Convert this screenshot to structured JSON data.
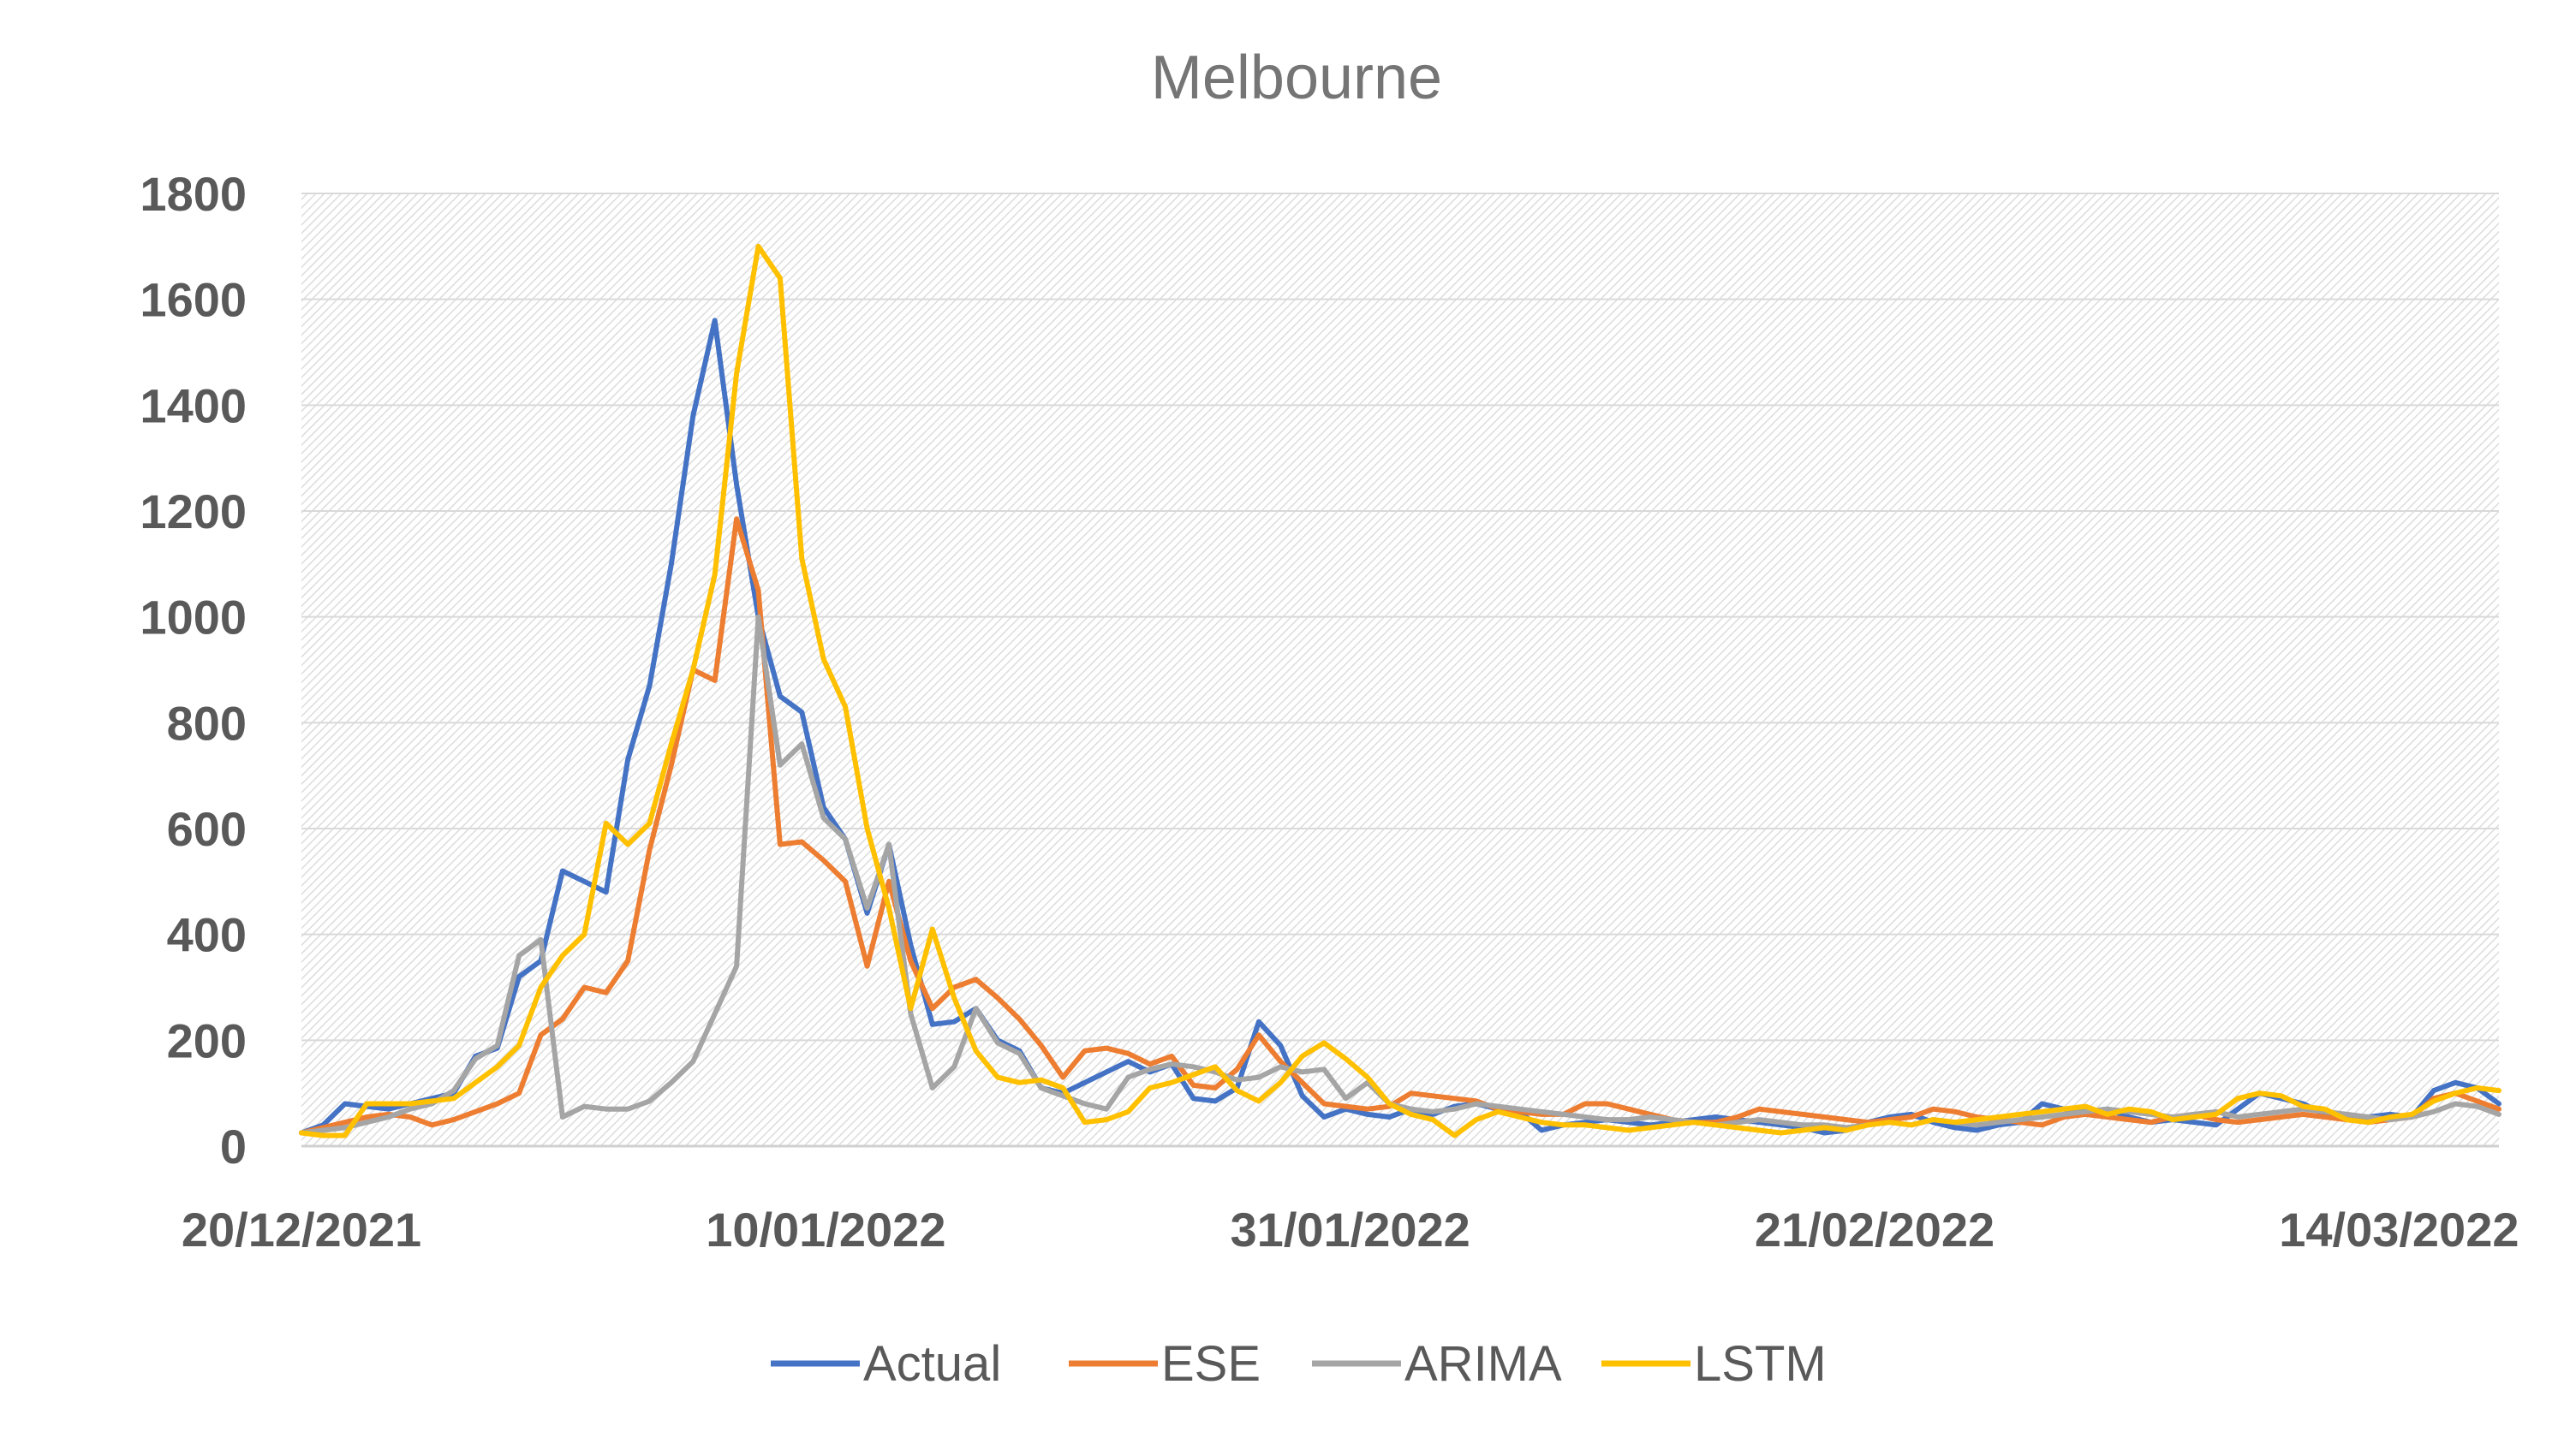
{
  "chart_data": {
    "type": "line",
    "title": "Melbourne",
    "xlabel": "",
    "ylabel": "",
    "ylim": [
      0,
      1800
    ],
    "yticks": [
      "0",
      "200",
      "400",
      "600",
      "800",
      "1000",
      "1200",
      "1400",
      "1600",
      "1800"
    ],
    "x_start": "20/12/2021",
    "x_end": "18/03/2022",
    "xticks": [
      "20/12/2021",
      "10/01/2022",
      "31/01/2022",
      "21/02/2022",
      "14/03/2022"
    ],
    "grid": true,
    "legend": "bottom",
    "series": [
      {
        "name": "Actual",
        "color": "#4472C4",
        "values": [
          25,
          40,
          80,
          75,
          70,
          80,
          90,
          100,
          170,
          185,
          320,
          350,
          520,
          500,
          480,
          730,
          870,
          1100,
          1380,
          1560,
          1250,
          1000,
          850,
          820,
          640,
          580,
          440,
          570,
          380,
          230,
          235,
          260,
          200,
          180,
          110,
          100,
          120,
          140,
          160,
          140,
          155,
          90,
          85,
          110,
          235,
          190,
          95,
          55,
          70,
          60,
          55,
          70,
          60,
          75,
          80,
          70,
          65,
          30,
          40,
          45,
          50,
          45,
          40,
          45,
          50,
          55,
          50,
          45,
          40,
          35,
          25,
          30,
          45,
          55,
          60,
          45,
          35,
          30,
          40,
          45,
          80,
          70,
          65,
          70,
          55,
          45,
          50,
          45,
          40,
          70,
          100,
          90,
          80,
          60,
          50,
          55,
          60,
          55,
          105,
          120,
          110,
          80
        ]
      },
      {
        "name": "ESE",
        "color": "#ED7D31",
        "values": [
          25,
          35,
          45,
          55,
          60,
          55,
          40,
          50,
          65,
          80,
          100,
          210,
          240,
          300,
          290,
          350,
          560,
          720,
          900,
          880,
          1185,
          1050,
          570,
          575,
          540,
          500,
          340,
          500,
          350,
          260,
          300,
          315,
          280,
          240,
          190,
          130,
          180,
          185,
          175,
          155,
          170,
          115,
          110,
          145,
          210,
          160,
          120,
          80,
          75,
          70,
          75,
          100,
          95,
          90,
          85,
          70,
          65,
          60,
          60,
          80,
          80,
          70,
          60,
          50,
          45,
          45,
          55,
          70,
          65,
          60,
          55,
          50,
          45,
          50,
          55,
          70,
          65,
          55,
          50,
          45,
          40,
          55,
          60,
          55,
          50,
          45,
          55,
          60,
          50,
          45,
          50,
          55,
          60,
          55,
          50,
          45,
          50,
          55,
          90,
          100,
          85,
          70
        ]
      },
      {
        "name": "ARIMA",
        "color": "#A5A5A5",
        "values": [
          25,
          30,
          35,
          45,
          55,
          70,
          80,
          105,
          165,
          190,
          360,
          390,
          55,
          75,
          70,
          70,
          85,
          120,
          160,
          250,
          340,
          1000,
          720,
          760,
          620,
          580,
          450,
          570,
          250,
          110,
          150,
          260,
          195,
          175,
          110,
          95,
          80,
          70,
          130,
          145,
          155,
          150,
          140,
          125,
          130,
          150,
          140,
          145,
          90,
          120,
          80,
          70,
          65,
          70,
          80,
          75,
          70,
          65,
          60,
          55,
          50,
          50,
          55,
          50,
          45,
          40,
          45,
          50,
          45,
          40,
          40,
          35,
          40,
          45,
          40,
          50,
          45,
          40,
          45,
          50,
          55,
          60,
          65,
          70,
          65,
          60,
          55,
          60,
          65,
          55,
          60,
          65,
          70,
          65,
          60,
          55,
          50,
          55,
          65,
          80,
          75,
          60
        ]
      },
      {
        "name": "LSTM",
        "color": "#FFC000",
        "values": [
          25,
          20,
          20,
          80,
          80,
          80,
          85,
          90,
          120,
          150,
          190,
          300,
          360,
          400,
          610,
          570,
          610,
          760,
          900,
          1080,
          1460,
          1700,
          1640,
          1110,
          920,
          830,
          600,
          450,
          260,
          410,
          280,
          180,
          130,
          120,
          125,
          110,
          45,
          50,
          65,
          110,
          120,
          135,
          150,
          105,
          85,
          120,
          170,
          195,
          165,
          130,
          80,
          60,
          50,
          20,
          50,
          65,
          55,
          45,
          40,
          40,
          35,
          30,
          35,
          40,
          45,
          40,
          35,
          30,
          25,
          30,
          35,
          30,
          40,
          45,
          40,
          50,
          45,
          50,
          55,
          60,
          65,
          70,
          75,
          60,
          70,
          65,
          50,
          55,
          60,
          90,
          100,
          95,
          75,
          70,
          50,
          45,
          55,
          60,
          85,
          100,
          110,
          105
        ]
      }
    ]
  }
}
